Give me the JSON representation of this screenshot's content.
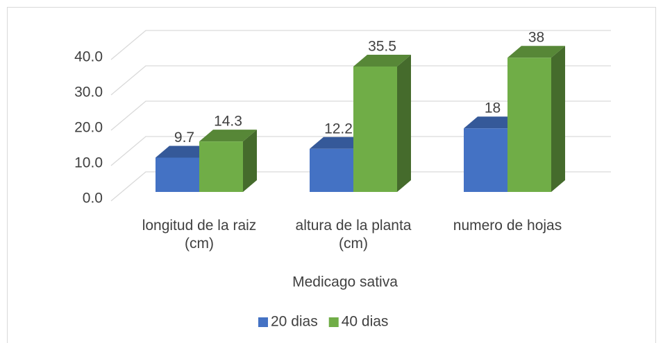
{
  "chart_data": {
    "type": "bar3d",
    "x_label": "Medicago sativa",
    "categories": [
      "longitud de la raiz (cm)",
      "altura de la planta (cm)",
      "numero de hojas"
    ],
    "series": [
      {
        "name": "20 dias",
        "color": "#4472c4",
        "values": [
          9.7,
          12.2,
          18
        ]
      },
      {
        "name": "40 dias",
        "color": "#70ad47",
        "values": [
          14.3,
          35.5,
          38
        ]
      }
    ],
    "ylim": [
      0,
      40
    ],
    "yticks": [
      {
        "value": 0,
        "label": "0.0"
      },
      {
        "value": 10,
        "label": "10.0"
      },
      {
        "value": 20,
        "label": "20.0"
      },
      {
        "value": 30,
        "label": "30.0"
      },
      {
        "value": 40,
        "label": "40.0"
      }
    ],
    "grid": true,
    "legend": "bottom"
  }
}
